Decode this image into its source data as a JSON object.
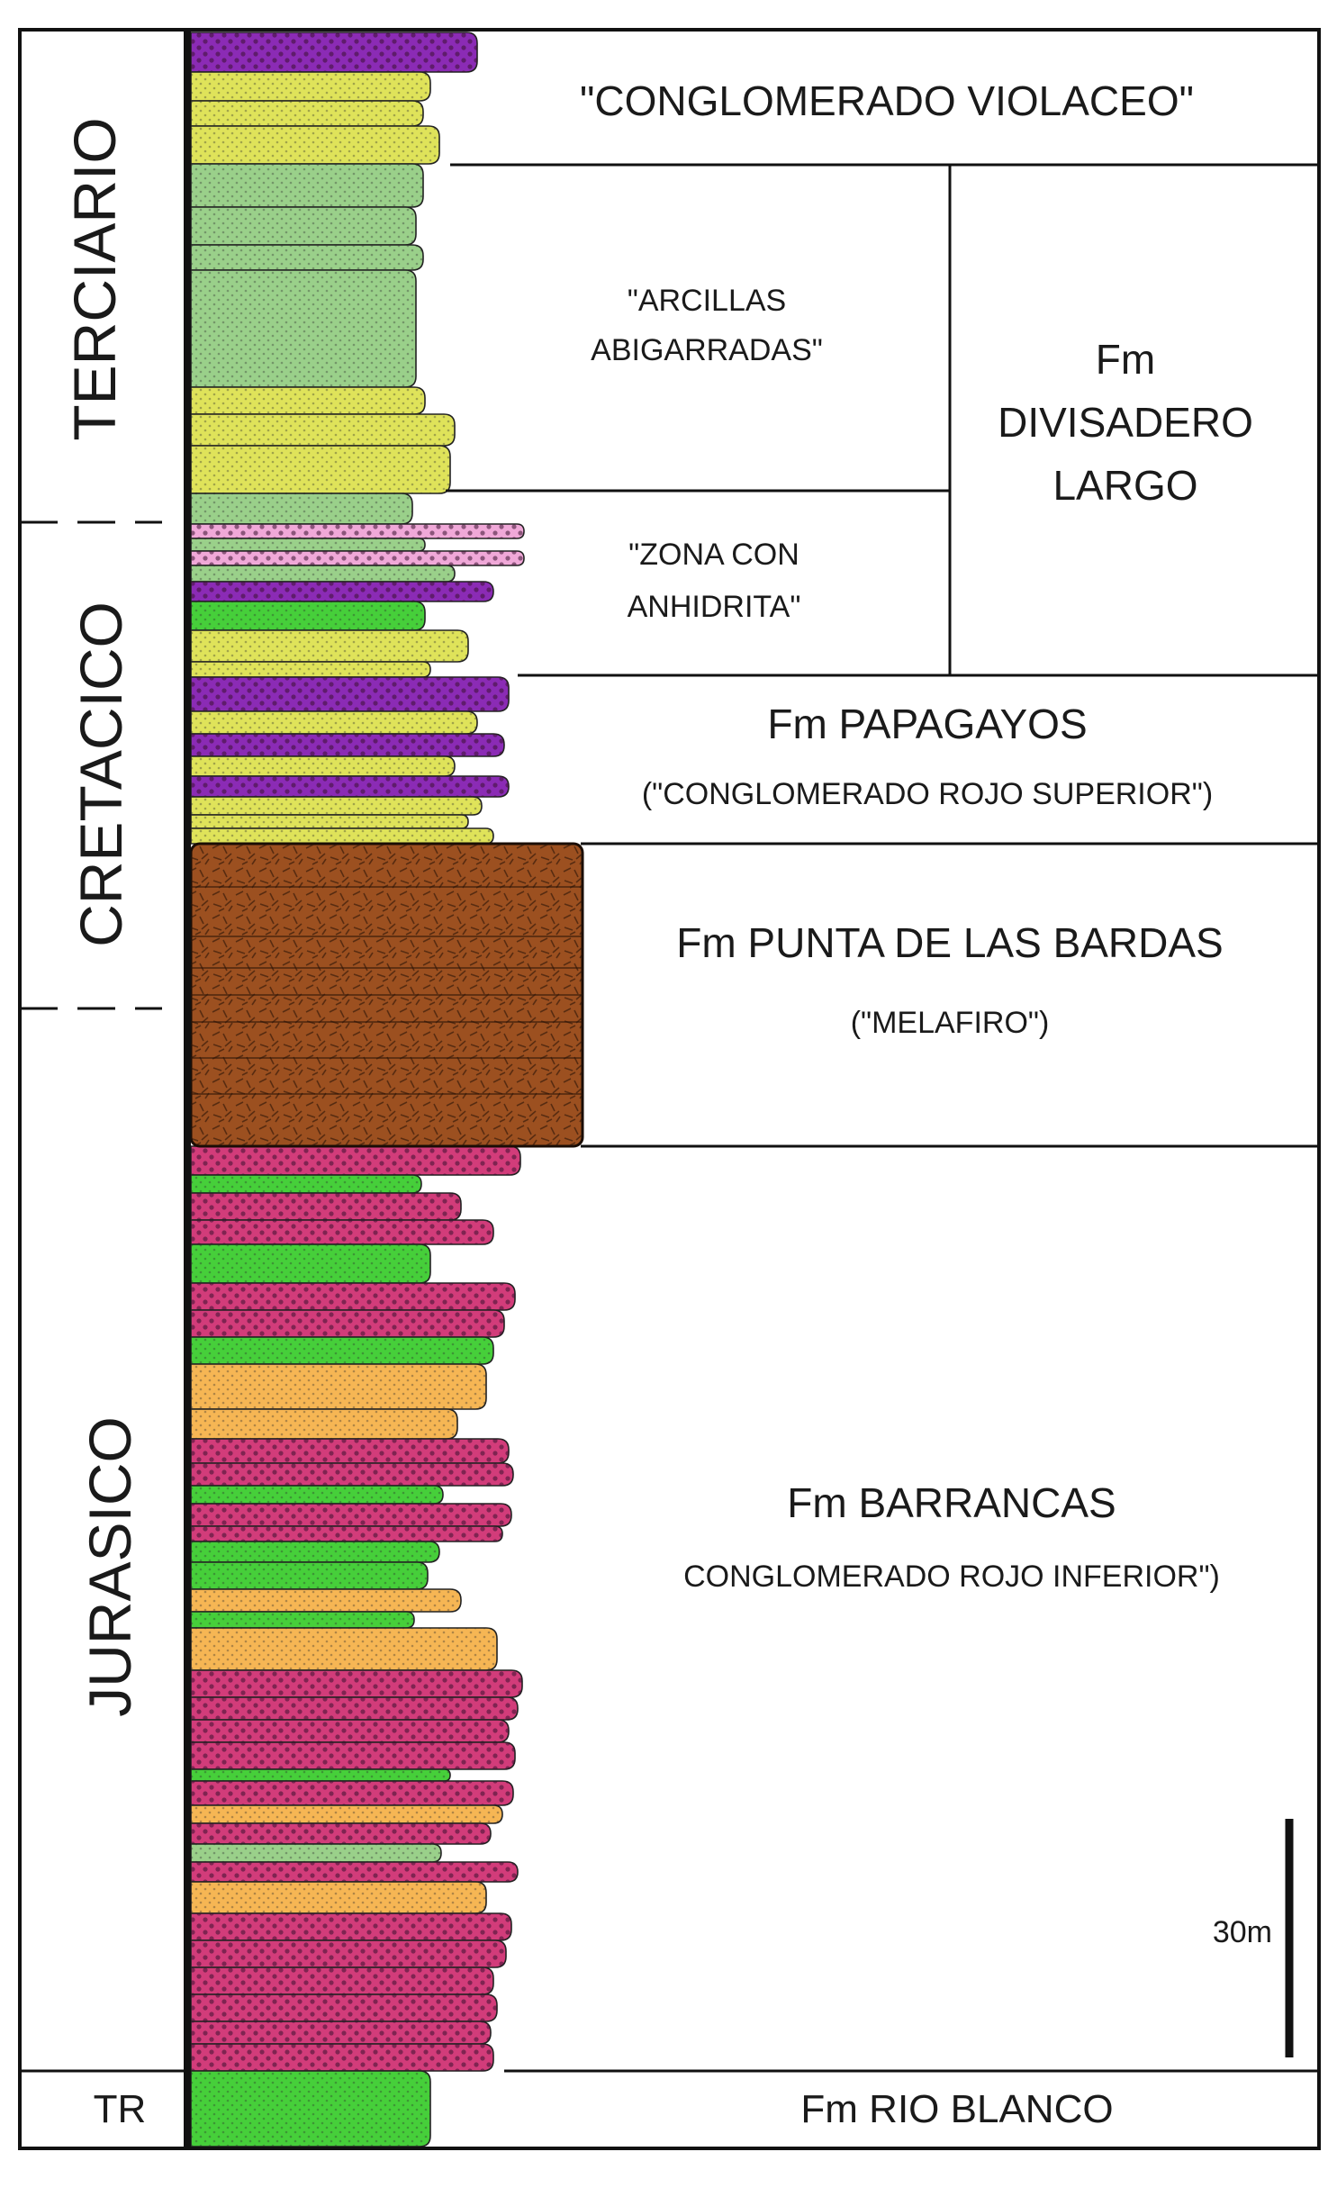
{
  "periods": [
    {
      "id": "terciario",
      "label": "TERCIARIO"
    },
    {
      "id": "cretacico",
      "label": "CRETACICO"
    },
    {
      "id": "jurasico",
      "label": "JURASICO"
    },
    {
      "id": "triasico",
      "label": "TR"
    }
  ],
  "units": {
    "conglomerado_violaceo": "\"CONGLOMERADO VIOLACEO\"",
    "arcillas_line1": "\"ARCILLAS",
    "arcillas_line2": "ABIGARRADAS\"",
    "zona_line1": "\"ZONA CON",
    "zona_line2": "ANHIDRITA\"",
    "divisadero_line1": "Fm",
    "divisadero_line2": "DIVISADERO",
    "divisadero_line3": "LARGO",
    "papagayos": "Fm PAPAGAYOS",
    "papagayos_sub": "(\"CONGLOMERADO ROJO SUPERIOR\")",
    "punta_bardas": "Fm PUNTA DE LAS BARDAS",
    "punta_bardas_sub": "(\"MELAFIRO\")",
    "barrancas": "Fm BARRANCAS",
    "barrancas_sub": "CONGLOMERADO ROJO INFERIOR\")",
    "rio_blanco": "Fm RIO BLANCO"
  },
  "scale_bar": {
    "label": "30m",
    "meters": 30
  },
  "colors": {
    "purple": "#8b2bb5",
    "yellow": "#dfe35a",
    "pale_green": "#9ad08a",
    "bright_green": "#46cf3a",
    "pink": "#f0a8d8",
    "magenta": "#d23c7a",
    "orange": "#f6b654",
    "brown": "#9c5020"
  }
}
